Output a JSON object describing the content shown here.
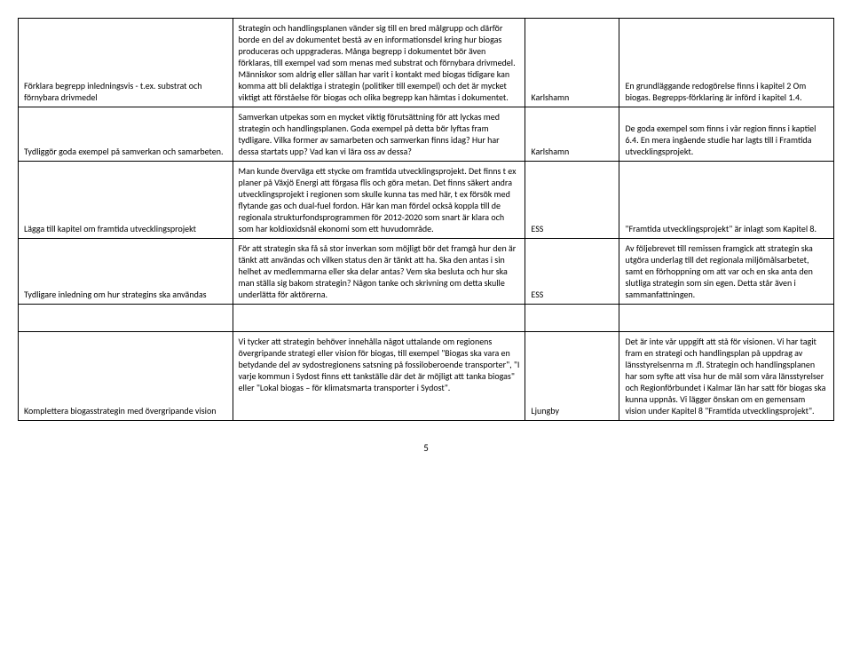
{
  "rows": [
    {
      "col1": "Förklara begrepp inledningsvis - t.ex. substrat och förnybara drivmedel",
      "col2": "Strategin och handlingsplanen vänder sig till en bred målgrupp och därför borde en del av dokumentet bestå av en informationsdel kring hur biogas produceras och uppgraderas. Många begrepp i dokumentet bör även förklaras, till exempel vad som menas med substrat och förnybara drivmedel. Människor som aldrig eller sällan har varit i kontakt med biogas tidigare kan komma att bli delaktiga i strategin (politiker till exempel) och det är mycket viktigt att förståelse för biogas och olika begrepp kan hämtas i dokumentet.",
      "col3": "Karlshamn",
      "col4": "En grundläggande redogörelse finns i kapitel 2 Om biogas. Begrepps-förklaring är införd i kapitel 1.4."
    },
    {
      "col1": "Tydliggör goda exempel på samverkan och samarbeten.",
      "col2": "Samverkan utpekas som en mycket viktig förutsättning för att lyckas med strategin och handlingsplanen. Goda exempel på detta bör lyftas fram tydligare. Vilka former av samarbeten och samverkan finns idag? Hur har dessa startats upp? Vad kan vi lära oss av dessa?",
      "col3": "Karlshamn",
      "col4": "De goda exempel som finns i vår region finns i kaptiel 6.4. En mera ingående studie har lagts till i Framtida utvecklingsprojekt."
    },
    {
      "col1": "Lägga till kapitel om framtida utvecklingsprojekt",
      "col2": "Man kunde överväga ett stycke om framtida utvecklingsprojekt. Det finns t ex planer på Växjö Energi att förgasa flis och göra metan. Det finns säkert andra utvecklingsprojekt i regionen som skulle kunna tas med här, t ex försök med flytande gas och dual-fuel fordon. Här kan man fördel också koppla till de regionala strukturfondsprogrammen för 2012-2020 som snart är klara och som har koldioxidsnål ekonomi som ett huvudområde.",
      "col3": "ESS",
      "col4": " \"Framtida utvecklingsprojekt\" är inlagt som Kapitel 8."
    },
    {
      "col1": "Tydligare inledning om hur strategins ska användas",
      "col2": "För att strategin ska få så stor inverkan som möjligt bör det framgå hur den är tänkt att användas och vilken status den är tänkt att ha. Ska den antas i sin helhet av medlemmarna eller ska delar antas? Vem ska besluta och hur ska man ställa sig bakom strategin? Någon tanke och skrivning om detta skulle underlätta för aktörerna.",
      "col3": "ESS",
      "col4": "Av följebrevet till remissen framgick att strategin ska utgöra underlag till det regionala miljömålsarbetet, samt en förhoppning om att var och en ska anta den slutliga strategin som sin egen. Detta står även i sammanfattningen."
    },
    {
      "col1": "Komplettera biogasstrategin med övergripande vision",
      "col2": "Vi tycker att strategin behöver innehålla något uttalande om regionens övergripande strategi eller vision för biogas, till exempel \"Biogas ska vara en betydande del av sydostregionens satsning på fossiloberoende transporter\", \"I varje kommun i Sydost finns ett tankställe där det är möjligt att tanka biogas\" eller \"Lokal biogas – för klimatsmarta transporter i Sydost\".",
      "col3": "Ljungby",
      "col4": "Det är inte vår uppgift att stå för visionen. Vi har tagit fram en strategi och handlingsplan på uppdrag av länsstyrelsenrna m .fl.  Strategin och handlingsplanen har som syfte att visa hur de mål som våra länsstyrelser och Regionförbundet i Kalmar län har satt för biogas ska kunna uppnås. Vi lägger önskan om en gemensam vision under Kapitel 8 \"Framtida utvecklingsprojekt\"."
    }
  ],
  "pageNumber": "5"
}
